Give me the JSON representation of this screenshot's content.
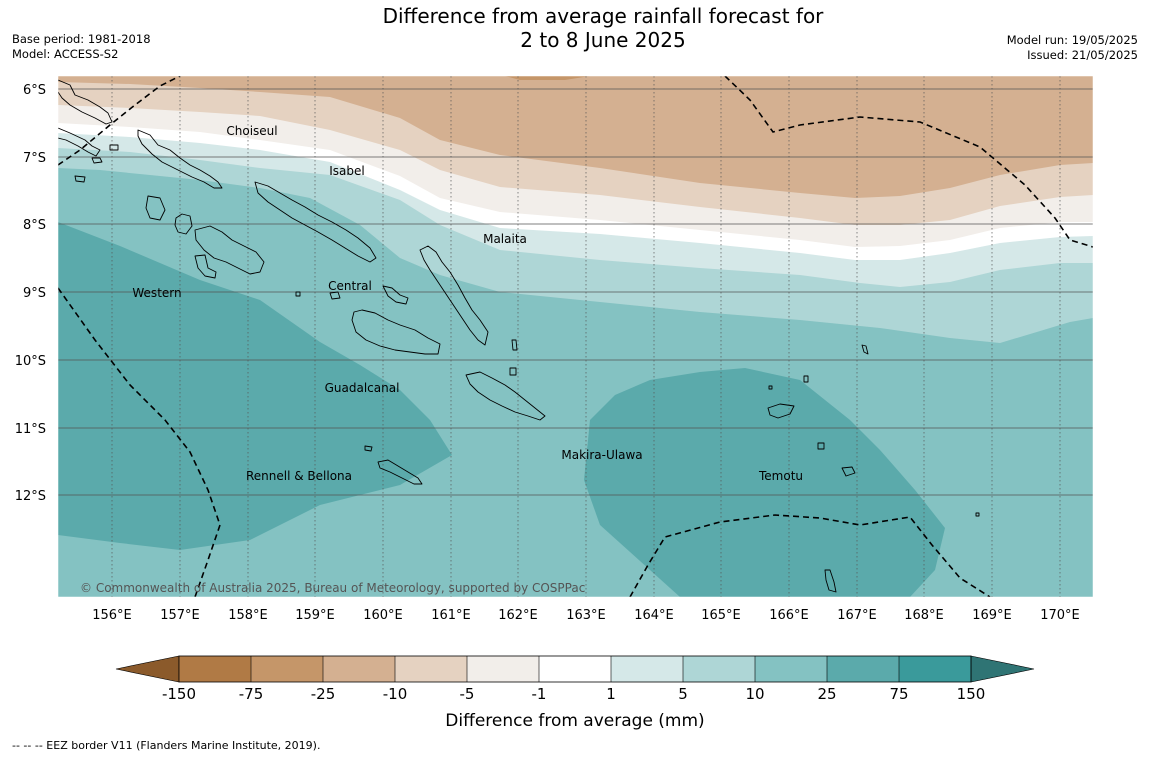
{
  "title": {
    "line1": "Difference from average rainfall forecast for",
    "line2": "2 to 8 June 2025"
  },
  "meta_left": {
    "base_period": "Base period: 1981-2018",
    "model": "Model: ACCESS-S2"
  },
  "meta_right": {
    "model_run": "Model run: 19/05/2025",
    "issued": "Issued: 21/05/2025"
  },
  "map": {
    "lat_labels": [
      "6°S",
      "7°S",
      "8°S",
      "9°S",
      "10°S",
      "11°S",
      "12°S"
    ],
    "lon_labels": [
      "156°E",
      "157°E",
      "158°E",
      "159°E",
      "160°E",
      "161°E",
      "162°E",
      "163°E",
      "164°E",
      "165°E",
      "166°E",
      "167°E",
      "168°E",
      "169°E",
      "170°E"
    ],
    "places": [
      "Choiseul",
      "Isabel",
      "Malaita",
      "Central",
      "Western",
      "Guadalcanal",
      "Makira-Ulawa",
      "Rennell & Bellona",
      "Temotu"
    ],
    "copyright": "© Commonwealth of Australia 2025, Bureau of Meteorology, supported by COSPPac",
    "border_style": "dashed"
  },
  "colorbar": {
    "colors": {
      "extend_low": "#8b5a2b",
      "extend_high": "#2f7474",
      "bins": [
        "#b07a45",
        "#c59669",
        "#d4b091",
        "#e5d2c1",
        "#f2eeea",
        "#ffffff",
        "#d5e8e8",
        "#aed6d6",
        "#84c2c2",
        "#5baaab",
        "#3a9a9b"
      ]
    },
    "tick_labels": [
      "-150",
      "-75",
      "-25",
      "-10",
      "-5",
      "-1",
      "1",
      "5",
      "10",
      "25",
      "75",
      "150"
    ],
    "label": "Difference from average (mm)"
  },
  "footnote": "-- -- -- EEZ border V11 (Flanders Marine Institute, 2019).",
  "colors": {
    "grid": "#555555",
    "coast": "#000000",
    "border": "#000000"
  }
}
